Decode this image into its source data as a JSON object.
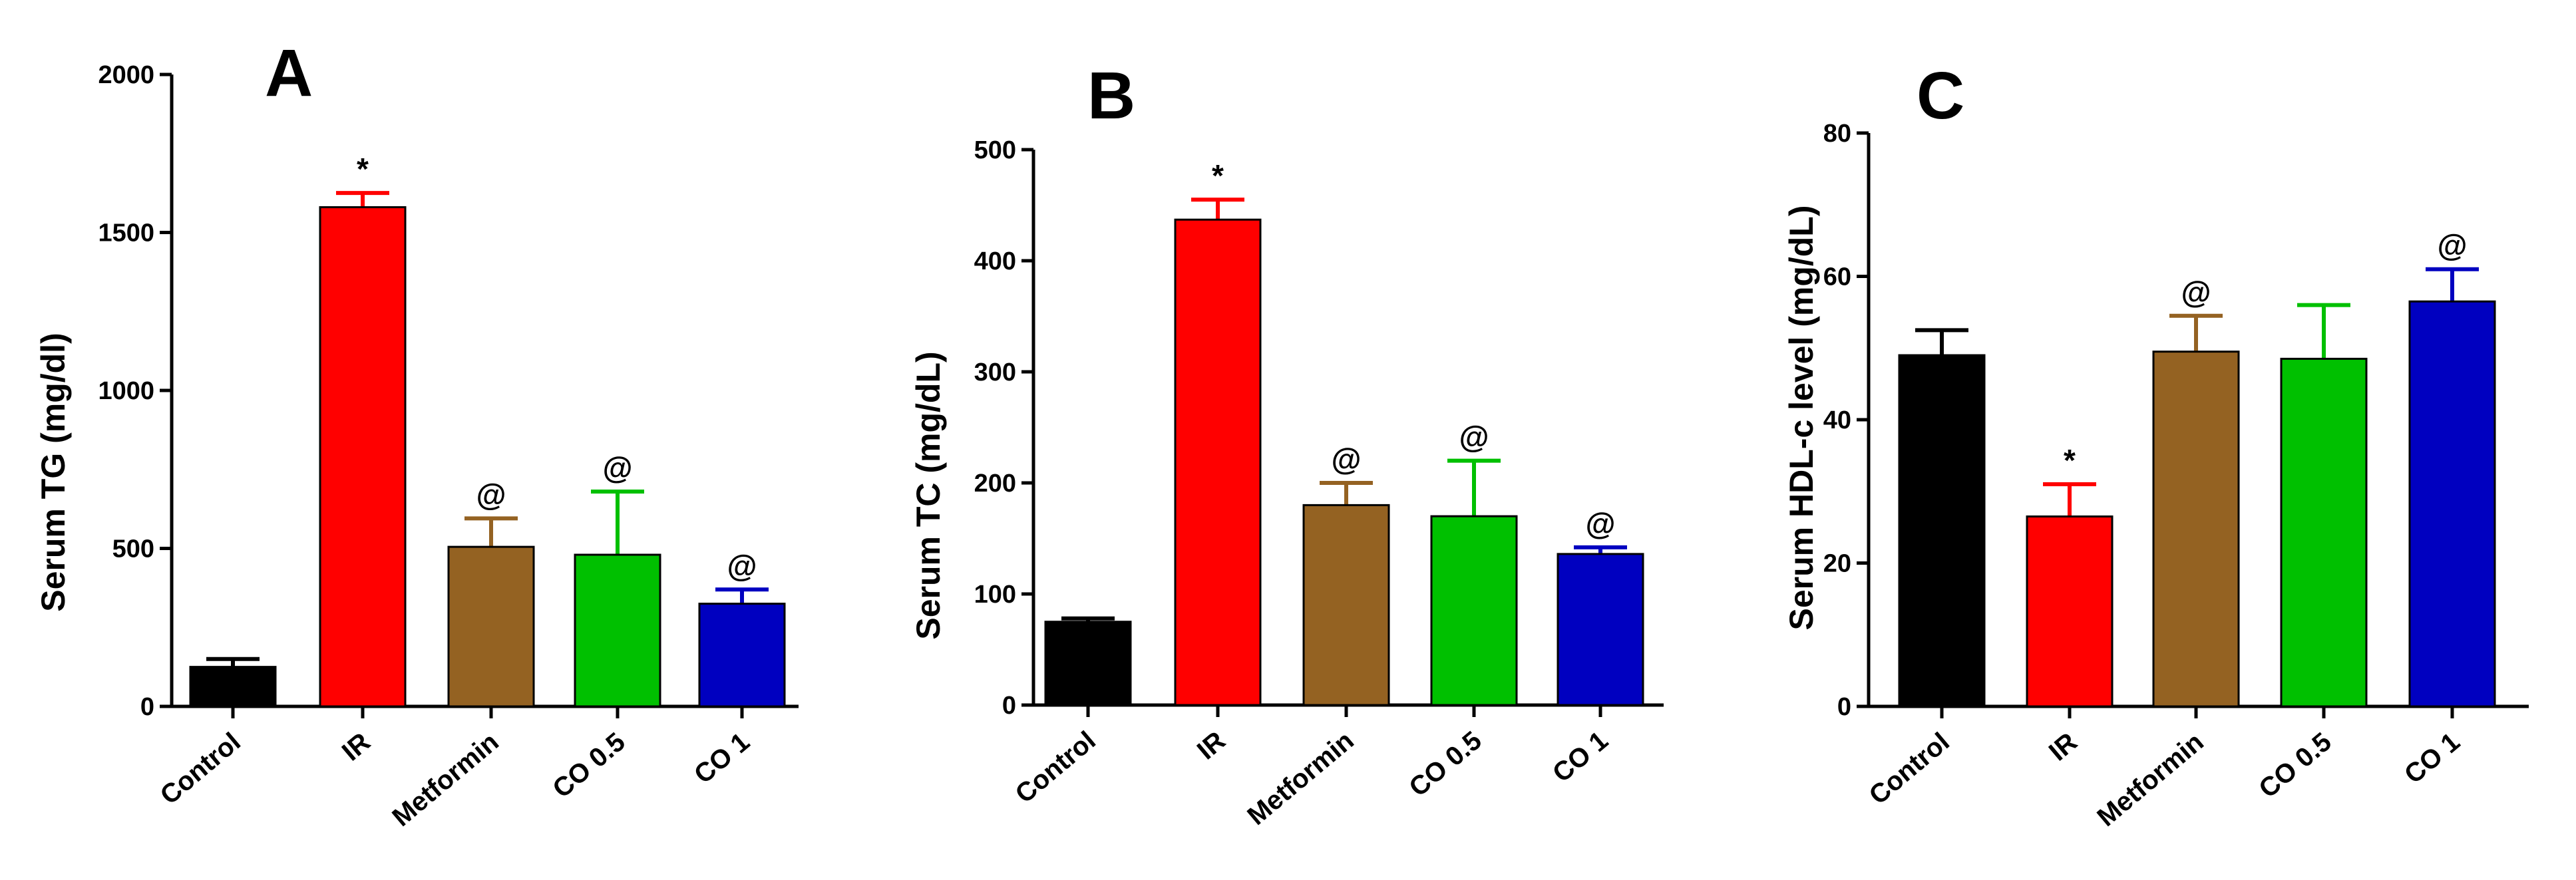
{
  "figure": {
    "categories": [
      "Control",
      "IR",
      "Metformin",
      "CO 0.5",
      "CO 1"
    ],
    "colors": [
      "#000000",
      "#ff0000",
      "#946222",
      "#00c000",
      "#0000c0"
    ]
  },
  "chart_data": [
    {
      "type": "bar",
      "panel": "A",
      "ylabel": "Serum TG (mg/dl)",
      "ylim": [
        0,
        2000
      ],
      "yticks": [
        0,
        500,
        1000,
        1500,
        2000
      ],
      "categories": [
        "Control",
        "IR",
        "Metformin",
        "CO 0.5",
        "CO 1"
      ],
      "values": [
        125,
        1580,
        505,
        480,
        325
      ],
      "errors": [
        25,
        45,
        90,
        200,
        45
      ],
      "annotations": [
        "",
        "*",
        "@",
        "@",
        "@"
      ]
    },
    {
      "type": "bar",
      "panel": "B",
      "ylabel": "Serum TC (mg/dL)",
      "ylim": [
        0,
        500
      ],
      "yticks": [
        0,
        100,
        200,
        300,
        400,
        500
      ],
      "categories": [
        "Control",
        "IR",
        "Metformin",
        "CO 0.5",
        "CO 1"
      ],
      "values": [
        75,
        437,
        180,
        170,
        136
      ],
      "errors": [
        3,
        18,
        20,
        50,
        6
      ],
      "annotations": [
        "",
        "*",
        "@",
        "@",
        "@"
      ]
    },
    {
      "type": "bar",
      "panel": "C",
      "ylabel": "Serum HDL-c level (mg/dL)",
      "ylim": [
        0,
        80
      ],
      "yticks": [
        0,
        20,
        40,
        60,
        80
      ],
      "categories": [
        "Control",
        "IR",
        "Metformin",
        "CO 0.5",
        "CO 1"
      ],
      "values": [
        49,
        26.5,
        49.5,
        48.5,
        56.5
      ],
      "errors": [
        3.5,
        4.5,
        5,
        7.5,
        4.5
      ],
      "annotations": [
        "",
        "*",
        "@",
        "",
        "@"
      ]
    }
  ]
}
